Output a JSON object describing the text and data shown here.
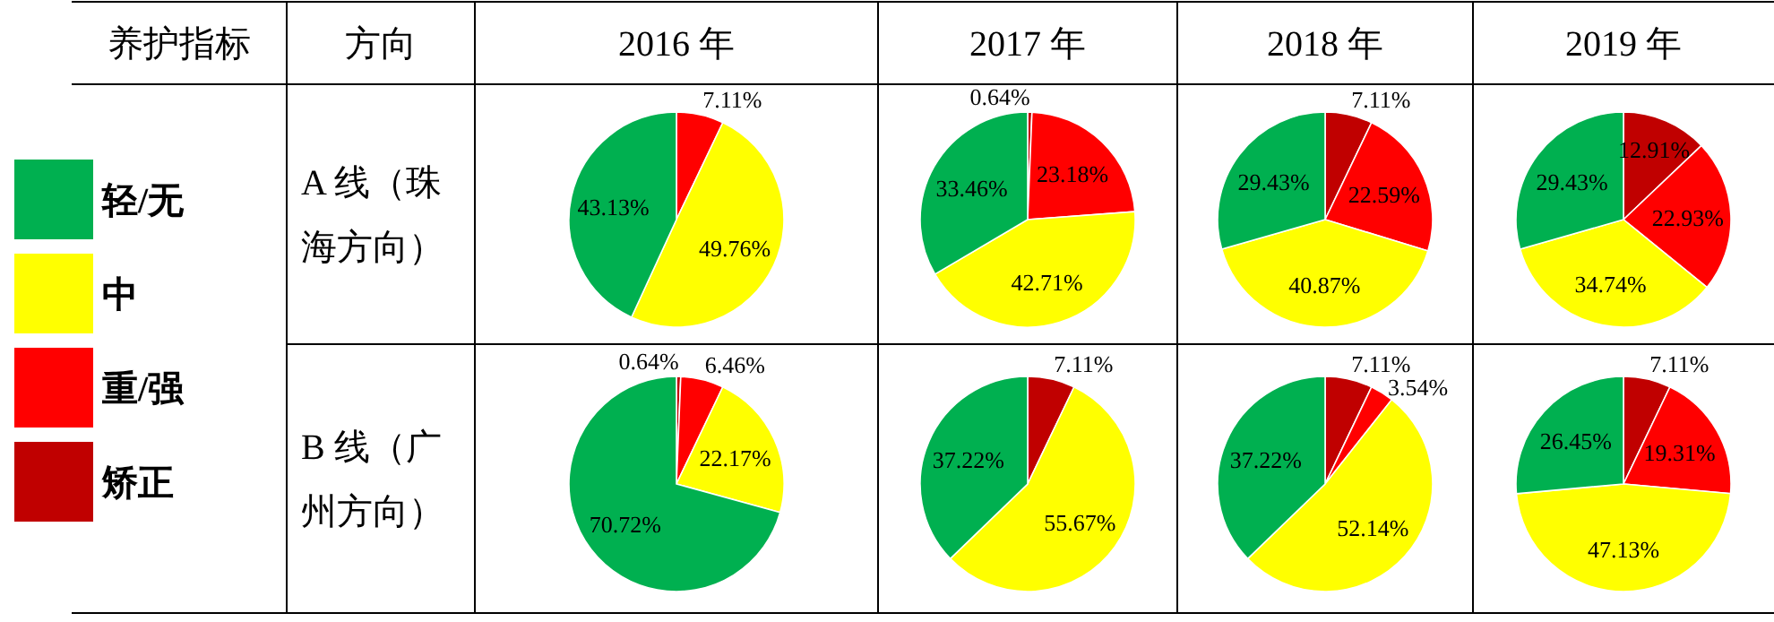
{
  "chart_data": [
    {
      "type": "other",
      "annotations": [
        "养护指标",
        "方向",
        "2016 年",
        "2017 年",
        "2018 年",
        "2019 年",
        "A 线（珠海方向）",
        "B 线（广州方向）"
      ]
    },
    {
      "type": "pie",
      "categories": [
        null,
        null,
        null
      ],
      "colors": [
        "#00b050",
        "#ffff00",
        "#ff0000"
      ],
      "values": [
        43.13,
        49.76,
        7.11
      ],
      "value_labels": [
        "43.13%",
        "49.76%",
        "7.11%"
      ]
    },
    {
      "type": "pie",
      "categories": [
        null,
        null,
        null,
        null
      ],
      "colors": [
        "#00b050",
        "#ffff00",
        "#ff0000",
        "#c00000"
      ],
      "values": [
        33.46,
        42.71,
        23.18,
        0.64
      ],
      "value_labels": [
        "33.46%",
        "42.71%",
        "23.18%",
        "0.64%"
      ]
    },
    {
      "type": "pie",
      "categories": [
        "轻/无",
        "中",
        "重/强",
        "矫正"
      ],
      "colors": [
        "#00b050",
        "#ffff00",
        "#ff0000",
        "#c00000"
      ],
      "values": [
        29.43,
        40.87,
        22.59,
        7.11
      ],
      "value_labels": [
        "29.43%",
        "40.87%",
        "22.59%",
        "7.11%"
      ],
      "legend": "left"
    },
    {
      "type": "pie",
      "categories": [
        null,
        null,
        null,
        null
      ],
      "colors": [
        "#00b050",
        "#ffff00",
        "#ff0000",
        "#c00000"
      ],
      "values": [
        29.43,
        34.74,
        22.93,
        12.91
      ],
      "value_labels": [
        "29.43%",
        "34.74%",
        "22.93%",
        "12.91%"
      ]
    },
    {
      "type": "pie",
      "categories": [
        null,
        null,
        null,
        null
      ],
      "colors": [
        "#00b050",
        "#ffff00",
        "#ff0000",
        "#c00000"
      ],
      "values": [
        70.72,
        22.17,
        6.46,
        0.64
      ],
      "value_labels": [
        "70.72%",
        "22.17%",
        "6.46%",
        "0.64%"
      ]
    },
    {
      "type": "pie",
      "categories": [
        null,
        null,
        null
      ],
      "colors": [
        "#00b050",
        "#ffff00",
        "#c00000"
      ],
      "values": [
        37.22,
        55.67,
        7.11
      ],
      "value_labels": [
        "37.22%",
        "55.67%",
        "7.11%"
      ]
    },
    {
      "type": "pie",
      "categories": [
        null,
        null,
        null,
        null
      ],
      "colors": [
        "#00b050",
        "#ffff00",
        "#ff0000",
        "#c00000"
      ],
      "values": [
        37.22,
        52.14,
        3.54,
        7.11
      ],
      "value_labels": [
        "37.22%",
        "52.14%",
        "3.54%",
        "7.11%"
      ]
    },
    {
      "type": "pie",
      "categories": [
        null,
        null,
        null,
        null
      ],
      "colors": [
        "#00b050",
        "#ffff00",
        "#ff0000",
        "#c00000"
      ],
      "values": [
        26.45,
        47.13,
        19.31,
        7.11
      ],
      "value_labels": [
        "26.45%",
        "47.13%",
        "19.31%",
        "7.11%"
      ]
    }
  ]
}
